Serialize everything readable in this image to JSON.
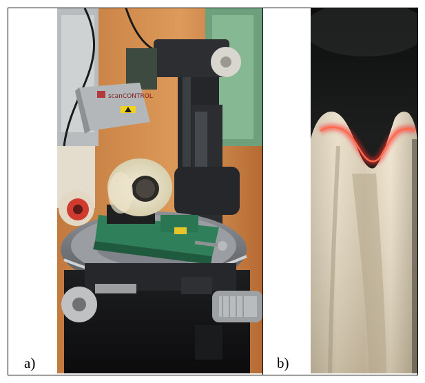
{
  "panels": [
    {
      "label": "a)",
      "image": "laser-scanner-measuring-station-photo"
    },
    {
      "label": "b)",
      "image": "red-laser-line-on-groove-profile-photo"
    }
  ],
  "scanner_label": {
    "logo": "scanCONTROL"
  },
  "colors": {
    "laser_red": "#ff2a2a",
    "vise_green": "#2f7f5a",
    "machine_black": "#2a2b2e",
    "wall_orange": "#cf8a4a"
  }
}
